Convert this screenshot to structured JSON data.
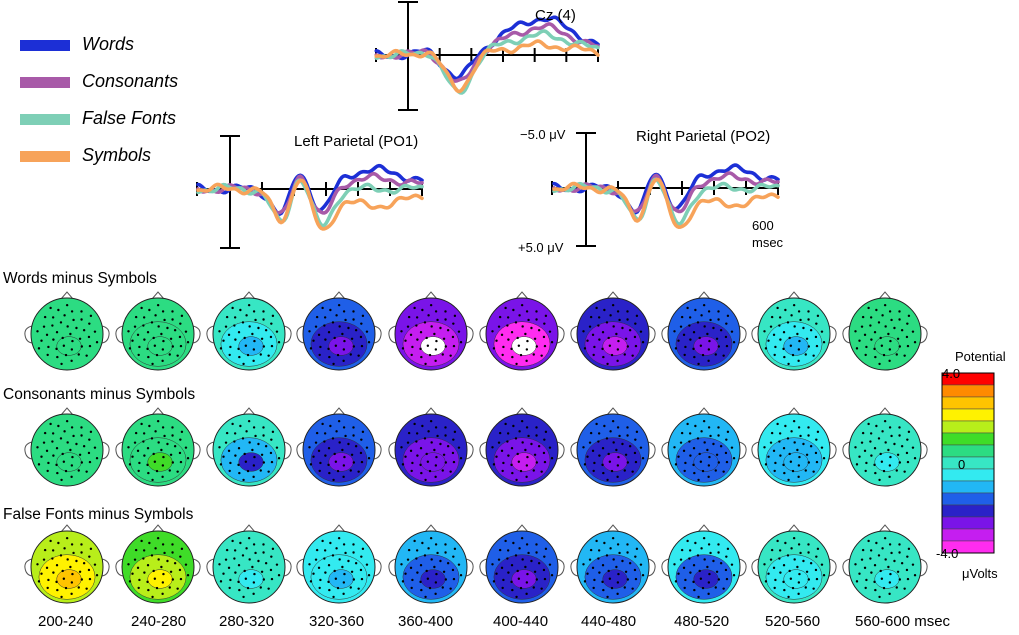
{
  "legend": {
    "items": [
      {
        "label": "Words",
        "color": "#1c2fd6"
      },
      {
        "label": "Consonants",
        "color": "#a85aa8"
      },
      {
        "label": "False Fonts",
        "color": "#7ecfb6"
      },
      {
        "label": "Symbols",
        "color": "#f7a35a"
      }
    ]
  },
  "erp": {
    "cz_title": "Cz (4)",
    "left_title": "Left Parietal (PO1)",
    "right_title": "Right Parietal (PO2)",
    "scale_neg": "−5.0 μV",
    "scale_pos": "+5.0 μV",
    "time_end": "600",
    "time_unit": "msec"
  },
  "maps": {
    "row_titles": [
      "Words minus Symbols",
      "Consonants minus Symbols",
      "False Fonts minus Symbols"
    ],
    "time_bins": [
      "200-240",
      "240-280",
      "280-320",
      "320-360",
      "360-400",
      "400-440",
      "440-480",
      "480-520",
      "520-560",
      "560-600 msec"
    ],
    "levels": [
      [
        0.3,
        0.4,
        0.0,
        -1.6,
        -2.6,
        -2.8,
        -2.2,
        -1.7,
        -0.2,
        0.3
      ],
      [
        0.3,
        0.3,
        -0.2,
        -1.6,
        -2.0,
        -2.1,
        -1.8,
        -1.1,
        -0.4,
        -0.1
      ],
      [
        1.5,
        1.0,
        -0.1,
        -0.3,
        -0.8,
        -1.4,
        -1.2,
        -0.7,
        -0.2,
        -0.2
      ]
    ],
    "peaks": [
      [
        0.4,
        0.8,
        -1.2,
        -2.6,
        -4.3,
        -4.3,
        -3.1,
        -2.6,
        -0.9,
        0.6
      ],
      [
        0.6,
        0.9,
        -2.0,
        -2.4,
        -2.8,
        -3.3,
        -2.8,
        -1.7,
        -1.2,
        -0.3
      ],
      [
        2.5,
        2.2,
        -0.3,
        -0.8,
        -2.0,
        -2.9,
        -2.3,
        -2.0,
        -0.6,
        -0.3
      ]
    ]
  },
  "colorbar": {
    "title": "Potential",
    "max_label": "4.0",
    "zero_label": "0",
    "min_label": "-4.0",
    "unit": "μVolts",
    "stops": [
      "#ff0000",
      "#ff8a00",
      "#ffc400",
      "#fff200",
      "#b8ee1a",
      "#3fdc28",
      "#2cdc82",
      "#37e6c4",
      "#33eaf0",
      "#22b7f5",
      "#1f5fe8",
      "#2a22c8",
      "#7a14e8",
      "#c51ef0",
      "#ff2cf0"
    ]
  }
}
